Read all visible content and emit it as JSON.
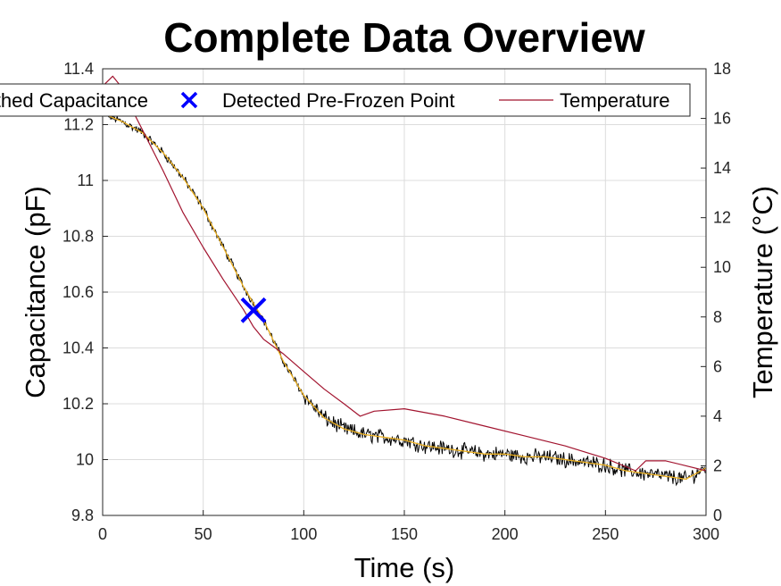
{
  "chart_data": {
    "type": "line",
    "title": "Complete Data Overview",
    "xlabel": "Time (s)",
    "ylabel_left": "Capacitance (pF)",
    "ylabel_right": "Temperature (°C)",
    "xlim": [
      0,
      300
    ],
    "ylim_left": [
      9.8,
      11.4
    ],
    "ylim_right": [
      0,
      18
    ],
    "x_ticks": [
      "0",
      "50",
      "100",
      "150",
      "200",
      "250",
      "300"
    ],
    "y_left_ticks": [
      "9.8",
      "10",
      "10.2",
      "10.4",
      "10.6",
      "10.8",
      "11",
      "11.2",
      "11.4"
    ],
    "y_right_ticks": [
      "0",
      "2",
      "4",
      "6",
      "8",
      "10",
      "12",
      "14",
      "16",
      "18"
    ],
    "grid": true,
    "legend_position": "top",
    "legend": {
      "entry1": "Smoothed Capacitance",
      "entry2": "Detected Pre-Frozen Point",
      "entry3": "Temperature"
    },
    "colors": {
      "raw": "#000000",
      "smoothed": "#EDB120",
      "marker": "#0000FF",
      "temperature": "#A2142F",
      "grid": "#dcdcdc"
    },
    "series": [
      {
        "name": "Smoothed Capacitance",
        "axis": "left",
        "x": [
          0,
          10,
          20,
          30,
          40,
          50,
          60,
          70,
          75,
          80,
          90,
          100,
          110,
          120,
          130,
          140,
          150,
          160,
          170,
          180,
          190,
          200,
          210,
          220,
          230,
          240,
          250,
          260,
          270,
          280,
          290,
          300
        ],
        "values": [
          11.24,
          11.21,
          11.17,
          11.1,
          11.01,
          10.9,
          10.76,
          10.62,
          10.56,
          10.5,
          10.35,
          10.23,
          10.15,
          10.11,
          10.09,
          10.08,
          10.07,
          10.05,
          10.04,
          10.03,
          10.02,
          10.02,
          10.01,
          10.01,
          10.0,
          9.99,
          9.98,
          9.96,
          9.95,
          9.94,
          9.93,
          9.97
        ]
      },
      {
        "name": "Temperature",
        "axis": "right",
        "x": [
          0,
          5,
          10,
          15,
          20,
          30,
          40,
          50,
          60,
          70,
          75,
          80,
          90,
          100,
          110,
          120,
          128,
          135,
          150,
          170,
          190,
          210,
          230,
          250,
          265,
          270,
          280,
          290,
          300
        ],
        "values": [
          17.3,
          17.7,
          17.2,
          16.3,
          15.5,
          13.9,
          12.2,
          10.8,
          9.5,
          8.3,
          7.6,
          7.1,
          6.5,
          5.8,
          5.1,
          4.5,
          4.0,
          4.2,
          4.3,
          4.0,
          3.6,
          3.2,
          2.8,
          2.3,
          1.8,
          2.2,
          2.2,
          2.0,
          1.8
        ]
      }
    ],
    "markers": [
      {
        "name": "Detected Pre-Frozen Point",
        "x": 75,
        "y": 10.535
      }
    ]
  }
}
